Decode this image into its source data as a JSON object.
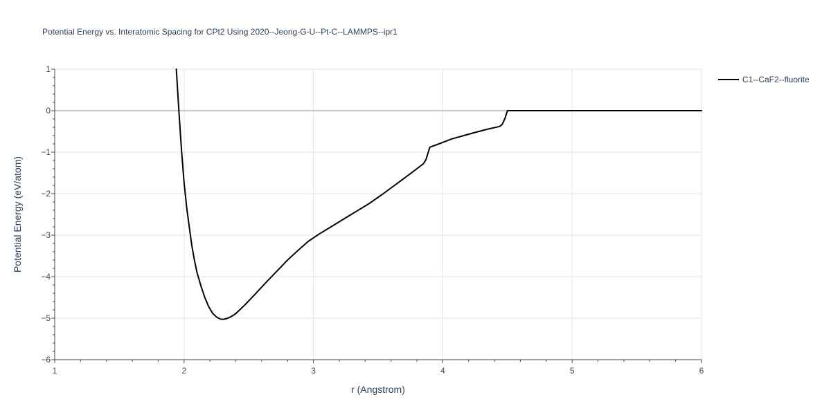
{
  "chart_data": {
    "type": "line",
    "title": "Potential Energy vs. Interatomic Spacing for CPt2 Using 2020--Jeong-G-U--Pt-C--LAMMPS--ipr1",
    "xlabel": "r (Angstrom)",
    "ylabel": "Potential Energy (eV/atom)",
    "xlim": [
      1,
      6
    ],
    "ylim": [
      -6,
      1
    ],
    "x_ticks": [
      1,
      2,
      3,
      4,
      5,
      6
    ],
    "y_ticks": [
      1,
      0,
      -1,
      -2,
      -3,
      -4,
      -5,
      -6
    ],
    "x_tick_labels": [
      "1",
      "2",
      "3",
      "4",
      "5",
      "6"
    ],
    "y_tick_labels": [
      "1",
      "0",
      "−1",
      "−2",
      "−3",
      "−4",
      "−5",
      "−6"
    ],
    "grid": true,
    "legend_position": "top-right",
    "series": [
      {
        "name": "C1--CaF2--fluorite",
        "color": "#000000",
        "x": [
          1.94,
          1.96,
          1.98,
          2.0,
          2.02,
          2.04,
          2.06,
          2.08,
          2.1,
          2.13,
          2.16,
          2.19,
          2.22,
          2.25,
          2.28,
          2.3,
          2.33,
          2.36,
          2.4,
          2.47,
          2.55,
          2.63,
          2.72,
          2.8,
          2.88,
          2.96,
          3.04,
          3.13,
          3.24,
          3.33,
          3.43,
          3.54,
          3.64,
          3.74,
          3.82,
          3.85,
          3.87,
          3.9,
          3.97,
          4.07,
          4.22,
          4.34,
          4.44,
          4.46,
          4.48,
          4.5,
          4.6,
          5.0,
          5.5,
          6.0
        ],
        "y": [
          1.0,
          0.0,
          -0.95,
          -1.73,
          -2.32,
          -2.8,
          -3.25,
          -3.6,
          -3.9,
          -4.22,
          -4.5,
          -4.72,
          -4.88,
          -4.97,
          -5.02,
          -5.03,
          -5.01,
          -4.97,
          -4.89,
          -4.68,
          -4.42,
          -4.15,
          -3.86,
          -3.6,
          -3.37,
          -3.15,
          -2.98,
          -2.81,
          -2.6,
          -2.43,
          -2.24,
          -2.0,
          -1.77,
          -1.54,
          -1.35,
          -1.28,
          -1.18,
          -0.88,
          -0.8,
          -0.68,
          -0.55,
          -0.45,
          -0.38,
          -0.33,
          -0.19,
          0.0,
          0.0,
          0.0,
          0.0,
          0.0
        ]
      }
    ]
  }
}
